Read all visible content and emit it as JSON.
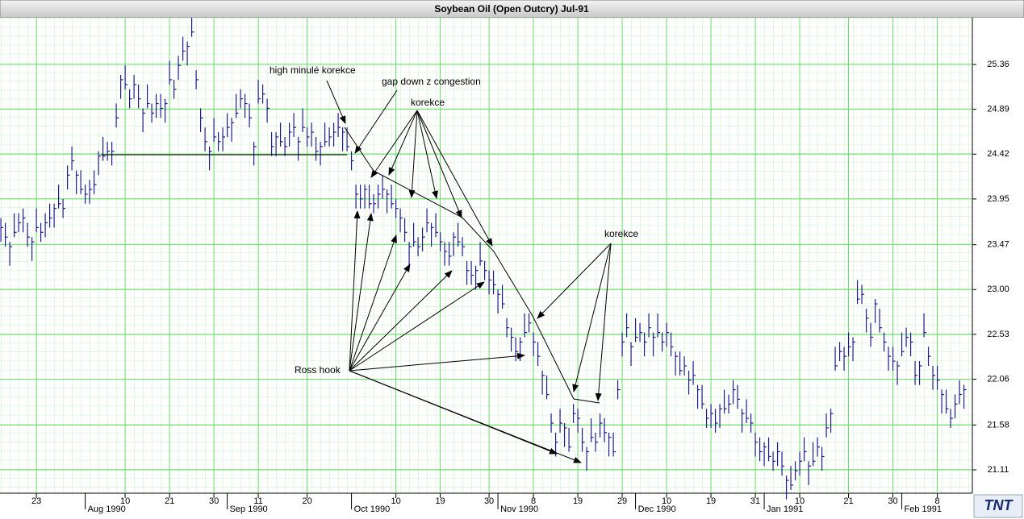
{
  "chart_data": {
    "type": "ohlc",
    "title": "Soybean Oil (Open Outcry) Jul-91",
    "logo": "TNT",
    "annotations": [
      "high minulé korekce",
      "gap down z congestion",
      "korekce",
      "korekce",
      "Ross hook"
    ],
    "color": "#1c1c8c",
    "grid": true,
    "grid_color": "#66dd66",
    "ylim": [
      20.865,
      25.85
    ],
    "yticks": [
      21.11,
      21.58,
      22.06,
      22.53,
      {
        "value": 23,
        "label": "23.00"
      },
      23.47,
      23.95,
      24.42,
      24.89,
      25.36
    ],
    "xlim": [
      -0.2,
      218.9
    ],
    "xticks": [
      {
        "value": 8,
        "label": "23"
      },
      {
        "value": 19,
        "label": "Aug 1990"
      },
      {
        "value": 28,
        "label": "10"
      },
      {
        "value": 38,
        "label": "21"
      },
      {
        "value": 48,
        "label": "30"
      },
      {
        "value": 51,
        "label": "Sep 1990"
      },
      {
        "value": 58,
        "label": "11"
      },
      {
        "value": 69,
        "label": "20"
      },
      {
        "value": 79,
        "label": "Oct 1990"
      },
      {
        "value": 89,
        "label": "10"
      },
      {
        "value": 99,
        "label": "19"
      },
      {
        "value": 110,
        "label": "30"
      },
      {
        "value": 112,
        "label": "Nov 1990"
      },
      {
        "value": 120,
        "label": "8"
      },
      {
        "value": 130,
        "label": "19"
      },
      {
        "value": 140,
        "label": "29"
      },
      {
        "value": 143,
        "label": "Dec 1990"
      },
      {
        "value": 150,
        "label": "10"
      },
      {
        "value": 160,
        "label": "19"
      },
      {
        "value": 170,
        "label": "31"
      },
      {
        "value": 172,
        "label": "Jan 1991"
      },
      {
        "value": 180,
        "label": "10"
      },
      {
        "value": 191,
        "label": "21"
      },
      {
        "value": 201,
        "label": "30"
      },
      {
        "value": 203,
        "label": "Feb 1991"
      },
      {
        "value": 211,
        "label": "8"
      }
    ],
    "x": [
      0,
      1,
      2,
      3,
      4,
      5,
      6,
      7,
      8,
      9,
      10,
      11,
      12,
      13,
      14,
      15,
      16,
      17,
      18,
      19,
      20,
      21,
      22,
      23,
      24,
      25,
      26,
      27,
      28,
      29,
      30,
      31,
      32,
      33,
      34,
      35,
      36,
      37,
      38,
      39,
      40,
      41,
      42,
      43,
      44,
      45,
      46,
      47,
      48,
      49,
      50,
      51,
      52,
      53,
      54,
      55,
      56,
      57,
      58,
      59,
      60,
      61,
      62,
      63,
      64,
      65,
      66,
      67,
      68,
      69,
      70,
      71,
      72,
      73,
      74,
      75,
      76,
      77,
      78,
      79,
      80,
      81,
      82,
      83,
      84,
      85,
      86,
      87,
      88,
      89,
      90,
      91,
      92,
      93,
      94,
      95,
      96,
      97,
      98,
      99,
      100,
      101,
      102,
      103,
      104,
      105,
      106,
      107,
      108,
      109,
      110,
      111,
      112,
      113,
      114,
      115,
      116,
      117,
      118,
      119,
      120,
      121,
      122,
      123,
      124,
      125,
      126,
      127,
      128,
      129,
      130,
      131,
      132,
      133,
      134,
      135,
      136,
      137,
      138,
      139,
      140,
      141,
      142,
      143,
      144,
      145,
      146,
      147,
      148,
      149,
      150,
      151,
      152,
      153,
      154,
      155,
      156,
      157,
      158,
      159,
      160,
      161,
      162,
      163,
      164,
      165,
      166,
      167,
      168,
      169,
      170,
      171,
      172,
      173,
      174,
      175,
      176,
      177,
      178,
      179,
      180,
      181,
      182,
      183,
      184,
      185,
      186,
      187,
      188,
      189,
      190,
      191,
      192,
      193,
      194,
      195,
      196,
      197,
      198,
      199,
      200,
      201,
      202,
      203,
      204,
      205,
      206,
      207,
      208,
      209,
      210,
      211,
      212,
      213,
      214,
      215,
      216,
      217
    ],
    "high": [
      23.75,
      23.7,
      23.5,
      23.8,
      23.8,
      23.85,
      23.7,
      23.55,
      23.85,
      23.7,
      23.8,
      23.9,
      23.9,
      24.1,
      23.95,
      24.3,
      24.5,
      24.25,
      24.25,
      24.1,
      24.15,
      24.25,
      24.45,
      24.6,
      24.55,
      24.55,
      24.95,
      25.25,
      25.35,
      25.1,
      25.25,
      25.15,
      24.9,
      25.15,
      24.95,
      25.05,
      25.05,
      25.0,
      25.4,
      25.2,
      25.45,
      25.65,
      25.6,
      25.85,
      25.3,
      24.9,
      24.7,
      24.5,
      24.8,
      24.65,
      24.7,
      24.85,
      24.8,
      25.05,
      25.1,
      25.05,
      24.95,
      24.55,
      25.2,
      25.15,
      25.0,
      24.65,
      24.65,
      24.75,
      24.6,
      24.75,
      24.85,
      24.6,
      24.9,
      24.7,
      24.75,
      24.6,
      24.55,
      24.75,
      24.7,
      24.75,
      24.85,
      24.7,
      24.7,
      24.45,
      24.1,
      24.1,
      24.1,
      24.1,
      24.0,
      24.1,
      24.2,
      24.05,
      24.1,
      23.95,
      23.85,
      23.75,
      23.5,
      23.7,
      23.55,
      23.65,
      23.85,
      23.7,
      23.8,
      23.6,
      23.5,
      23.5,
      23.6,
      23.7,
      23.55,
      23.3,
      23.3,
      23.25,
      23.5,
      23.3,
      23.2,
      23.2,
      23.0,
      23.05,
      22.7,
      22.6,
      22.5,
      22.5,
      22.75,
      22.75,
      22.55,
      22.45,
      22.15,
      22.1,
      21.7,
      21.5,
      21.75,
      21.6,
      21.55,
      21.8,
      21.75,
      21.55,
      21.35,
      21.65,
      21.5,
      21.7,
      21.65,
      21.5,
      21.5,
      22.05,
      22.55,
      22.75,
      22.45,
      22.7,
      22.65,
      22.55,
      22.75,
      22.55,
      22.75,
      22.55,
      22.65,
      22.55,
      22.35,
      22.35,
      22.3,
      22.15,
      22.25,
      22.0,
      22.0,
      21.75,
      21.8,
      21.75,
      21.8,
      21.95,
      21.9,
      22.05,
      22.0,
      21.75,
      21.85,
      21.7,
      21.5,
      21.45,
      21.4,
      21.45,
      21.3,
      21.4,
      21.3,
      21.05,
      21.15,
      21.2,
      21.3,
      21.45,
      21.2,
      21.4,
      21.45,
      21.35,
      21.7,
      21.75,
      22.4,
      22.45,
      22.4,
      22.55,
      22.5,
      23.1,
      23.05,
      22.8,
      22.65,
      22.9,
      22.8,
      22.55,
      22.4,
      22.4,
      22.25,
      22.55,
      22.6,
      22.55,
      22.25,
      22.25,
      22.75,
      22.4,
      22.2,
      22.2,
      21.95,
      21.95,
      21.75,
      21.9,
      22.05,
      22.0
    ],
    "low": [
      23.5,
      23.45,
      23.25,
      23.55,
      23.6,
      23.6,
      23.45,
      23.3,
      23.6,
      23.5,
      23.55,
      23.65,
      23.65,
      23.85,
      23.75,
      24.05,
      24.25,
      24.0,
      24.0,
      23.9,
      23.9,
      24.0,
      24.2,
      24.35,
      24.35,
      24.3,
      24.7,
      25.0,
      25.1,
      24.9,
      25.0,
      24.9,
      24.65,
      24.9,
      24.75,
      24.8,
      24.8,
      24.75,
      25.15,
      25.0,
      25.2,
      25.4,
      25.35,
      25.65,
      25.1,
      24.65,
      24.45,
      24.25,
      24.55,
      24.45,
      24.45,
      24.6,
      24.55,
      24.8,
      24.9,
      24.8,
      24.7,
      24.3,
      24.95,
      24.95,
      24.75,
      24.4,
      24.4,
      24.5,
      24.4,
      24.5,
      24.6,
      24.35,
      24.65,
      24.5,
      24.5,
      24.35,
      24.3,
      24.5,
      24.5,
      24.5,
      24.6,
      24.45,
      24.45,
      24.25,
      23.85,
      23.85,
      23.85,
      23.85,
      23.8,
      23.85,
      23.95,
      23.8,
      23.85,
      23.75,
      23.6,
      23.5,
      23.25,
      23.45,
      23.35,
      23.4,
      23.6,
      23.45,
      23.55,
      23.4,
      23.25,
      23.25,
      23.35,
      23.45,
      23.35,
      23.05,
      23.05,
      23.0,
      23.25,
      23.1,
      22.95,
      22.95,
      22.75,
      22.8,
      22.5,
      22.35,
      22.25,
      22.25,
      22.5,
      22.55,
      22.3,
      22.2,
      21.9,
      21.85,
      21.5,
      21.25,
      21.5,
      21.35,
      21.3,
      21.6,
      21.5,
      21.3,
      21.1,
      21.4,
      21.3,
      21.45,
      21.4,
      21.25,
      21.25,
      21.85,
      22.3,
      22.5,
      22.2,
      22.45,
      22.45,
      22.3,
      22.5,
      22.3,
      22.5,
      22.35,
      22.4,
      22.3,
      22.1,
      22.1,
      22.1,
      21.9,
      22.0,
      21.75,
      21.75,
      21.55,
      21.55,
      21.5,
      21.55,
      21.7,
      21.7,
      21.8,
      21.75,
      21.5,
      21.6,
      21.5,
      21.25,
      21.2,
      21.15,
      21.2,
      21.1,
      21.15,
      21.05,
      20.8,
      20.9,
      21.0,
      21.05,
      21.2,
      20.95,
      21.15,
      21.25,
      21.1,
      21.45,
      21.5,
      22.15,
      22.25,
      22.15,
      22.3,
      22.25,
      22.85,
      22.85,
      22.55,
      22.4,
      22.65,
      22.55,
      22.35,
      22.15,
      22.15,
      22.0,
      22.3,
      22.4,
      22.3,
      22.0,
      22.0,
      22.5,
      22.2,
      21.95,
      21.95,
      21.7,
      21.7,
      21.55,
      21.65,
      21.8,
      21.75
    ],
    "close": [
      23.65,
      23.55,
      23.45,
      23.6,
      23.7,
      23.75,
      23.55,
      23.5,
      23.65,
      23.6,
      23.7,
      23.75,
      23.85,
      23.9,
      23.85,
      24.2,
      24.35,
      24.2,
      24.05,
      24.0,
      24.05,
      24.1,
      24.4,
      24.4,
      24.45,
      24.45,
      24.8,
      25.2,
      25.15,
      25.0,
      25.15,
      25.0,
      24.85,
      24.95,
      24.85,
      24.95,
      24.9,
      24.95,
      25.2,
      25.1,
      25.35,
      25.5,
      25.55,
      25.7,
      25.2,
      24.8,
      24.55,
      24.45,
      24.6,
      24.55,
      24.6,
      24.7,
      24.75,
      24.85,
      25.0,
      24.95,
      24.8,
      24.5,
      25.0,
      25.05,
      24.9,
      24.5,
      24.6,
      24.55,
      24.5,
      24.65,
      24.7,
      24.55,
      24.7,
      24.6,
      24.65,
      24.45,
      24.5,
      24.55,
      24.6,
      24.65,
      24.7,
      24.65,
      24.5,
      24.35,
      24.0,
      23.95,
      24.05,
      23.9,
      23.9,
      24.0,
      24.05,
      24.0,
      23.9,
      23.85,
      23.75,
      23.6,
      23.45,
      23.5,
      23.45,
      23.55,
      23.7,
      23.65,
      23.6,
      23.5,
      23.4,
      23.35,
      23.55,
      23.5,
      23.45,
      23.2,
      23.15,
      23.2,
      23.3,
      23.2,
      23.1,
      23.05,
      22.95,
      22.85,
      22.6,
      22.5,
      22.35,
      22.45,
      22.55,
      22.65,
      22.45,
      22.3,
      22.1,
      21.9,
      21.6,
      21.4,
      21.6,
      21.55,
      21.35,
      21.7,
      21.65,
      21.4,
      21.3,
      21.45,
      21.4,
      21.6,
      21.5,
      21.45,
      21.3,
      21.95,
      22.45,
      22.6,
      22.4,
      22.5,
      22.55,
      22.45,
      22.6,
      22.5,
      22.55,
      22.45,
      22.55,
      22.4,
      22.3,
      22.15,
      22.2,
      22.05,
      22.1,
      21.95,
      21.8,
      21.65,
      21.7,
      21.6,
      21.75,
      21.75,
      21.8,
      21.95,
      21.85,
      21.7,
      21.65,
      21.6,
      21.4,
      21.3,
      21.35,
      21.25,
      21.2,
      21.3,
      21.15,
      21.0,
      20.95,
      21.1,
      21.2,
      21.3,
      21.15,
      21.2,
      21.35,
      21.25,
      21.55,
      21.7,
      22.2,
      22.35,
      22.3,
      22.4,
      22.45,
      22.9,
      22.95,
      22.7,
      22.5,
      22.85,
      22.6,
      22.45,
      22.3,
      22.25,
      22.2,
      22.35,
      22.5,
      22.45,
      22.1,
      22.2,
      22.55,
      22.3,
      22.1,
      22.05,
      21.9,
      21.75,
      21.65,
      21.8,
      21.9,
      21.95
    ]
  }
}
